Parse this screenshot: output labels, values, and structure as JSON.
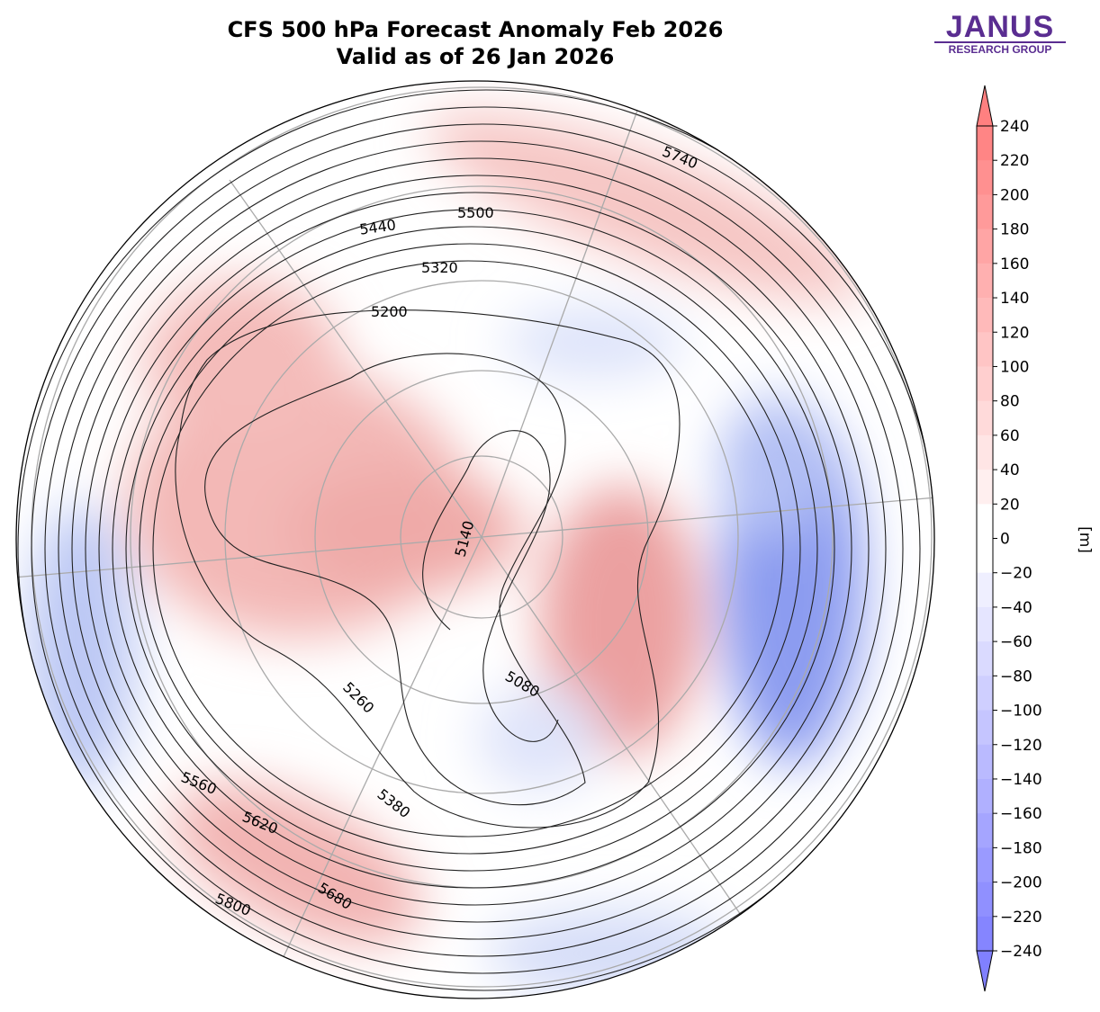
{
  "title": {
    "line1": "CFS 500 hPa Forecast Anomaly Feb 2026",
    "line2": "Valid as of 26 Jan 2026"
  },
  "logo": {
    "name": "JANUS",
    "subtitle": "RESEARCH GROUP",
    "color": "#5a2d91"
  },
  "colorbar": {
    "label": "[m]",
    "min": -240,
    "max": 240,
    "step": 20,
    "ticks": [
      "240",
      "220",
      "200",
      "180",
      "160",
      "140",
      "120",
      "100",
      "80",
      "60",
      "40",
      "20",
      "0",
      "−20",
      "−40",
      "−60",
      "−80",
      "−100",
      "−120",
      "−140",
      "−160",
      "−180",
      "−200",
      "−220",
      "−240"
    ],
    "color_negative": "#8080ff",
    "color_positive": "#ff8080",
    "extend": "both"
  },
  "map": {
    "projection": "north polar stereographic",
    "contour_labels": [
      "5740",
      "5500",
      "5440",
      "5320",
      "5200",
      "5140",
      "5080",
      "5260",
      "5380",
      "5560",
      "5620",
      "5680",
      "5800"
    ]
  }
}
